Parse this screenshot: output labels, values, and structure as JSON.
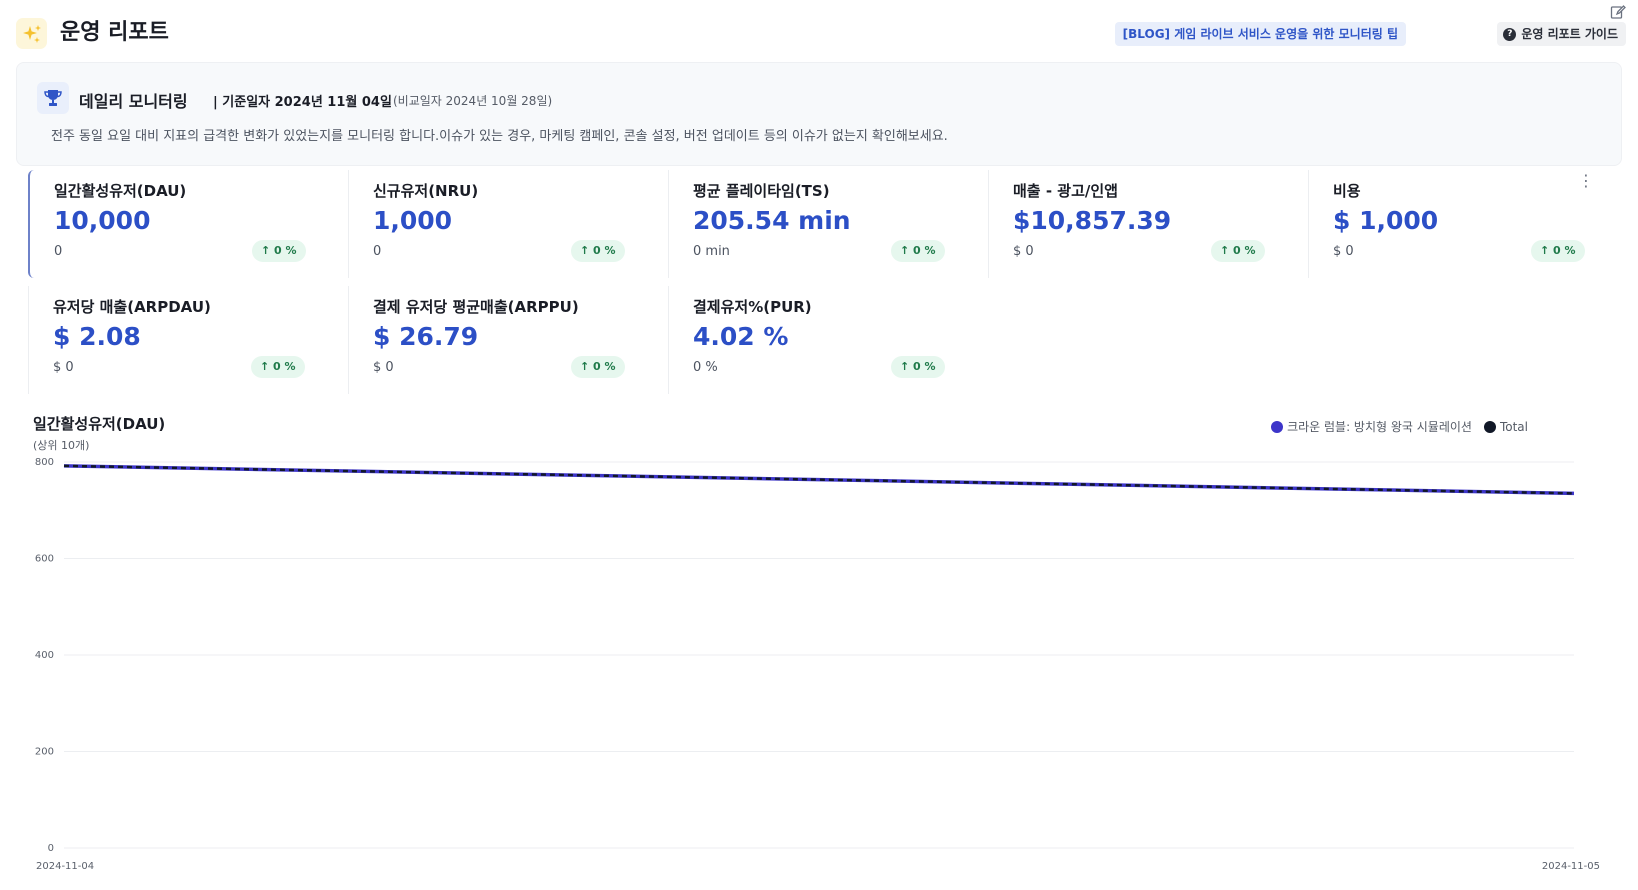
{
  "header": {
    "title": "운영 리포트",
    "blog_link": "[BLOG] 게임 라이브 서비스 운영을 위한 모니터링 팁",
    "guide_label": "운영 리포트 가이드",
    "icons": [
      "sparkles-icon",
      "edit-icon",
      "help-icon"
    ]
  },
  "banner": {
    "title": "데일리 모니터링",
    "date": "| 기준일자 2024년 11월 04일",
    "compare": "(비교일자 2024년 10월 28일)",
    "description": "전주 동일 요일 대비 지표의 급격한 변화가 있었는지를 모니터링 합니다.이슈가 있는 경우, 마케팅 캠페인, 콘솔 설정, 버전 업데이트 등의 이슈가 없는지 확인해보세요.",
    "icon": "trophy-icon"
  },
  "kpis": [
    {
      "label": "일간활성유저(DAU)",
      "value": "10,000",
      "previous": "0",
      "change": "↑ 0 %"
    },
    {
      "label": "신규유저(NRU)",
      "value": "1,000",
      "previous": "0",
      "change": "↑ 0 %"
    },
    {
      "label": "평균 플레이타임(TS)",
      "value": "205.54 min",
      "previous": "0 min",
      "change": "↑ 0 %"
    },
    {
      "label": "매출 - 광고/인앱",
      "value": "$10,857.39",
      "previous": "$ 0",
      "change": "↑ 0 %"
    },
    {
      "label": "비용",
      "value": "$ 1,000",
      "previous": "$ 0",
      "change": "↑ 0 %"
    },
    {
      "label": "유저당 매출(ARPDAU)",
      "value": "$ 2.08",
      "previous": "$ 0",
      "change": "↑ 0 %"
    },
    {
      "label": "결제 유저당 평균매출(ARPPU)",
      "value": "$ 26.79",
      "previous": "$ 0",
      "change": "↑ 0 %"
    },
    {
      "label": "결제유저%(PUR)",
      "value": "4.02 %",
      "previous": "0 %",
      "change": "↑ 0 %"
    }
  ],
  "colors": {
    "accent": "#2c4fc6",
    "positive_badge": "#e6f7ee",
    "series_1": "#3d35c9",
    "series_total": "#111827"
  },
  "chart_data": {
    "type": "line",
    "title": "일간활성유저(DAU)",
    "subtitle": "(상위 10개)",
    "x": [
      "2024-11-04",
      "2024-11-05"
    ],
    "series": [
      {
        "name": "크라운 럼블: 방치형 왕국 시뮬레이션",
        "values": [
          792,
          735
        ]
      },
      {
        "name": "Total",
        "values": [
          792,
          735
        ]
      }
    ],
    "ylim": [
      0,
      800
    ],
    "yticks": [
      0,
      200,
      400,
      600,
      800
    ],
    "grid": true,
    "legend": "top-right"
  }
}
